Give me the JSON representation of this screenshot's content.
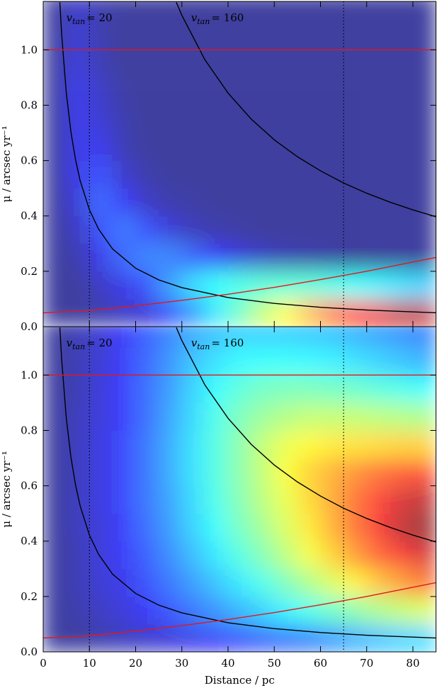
{
  "chart_data": [
    {
      "type": "heatmap",
      "colormap": "jet",
      "xlim": [
        0,
        85
      ],
      "xticks": [
        0,
        10,
        20,
        30,
        40,
        50,
        60,
        70,
        80
      ],
      "ylim": [
        0,
        1.175
      ],
      "yticks": [
        {
          "value": 0,
          "label": "0.0"
        },
        0.2,
        0.4,
        0.6,
        0.8,
        {
          "value": 1,
          "label": "1.0"
        }
      ],
      "ylabel": "μ / arcsec yr⁻¹",
      "x": [
        2.5,
        7.5,
        12.5,
        17.5,
        22.5,
        27.5,
        32.5,
        37.5,
        42.5,
        47.5,
        52.5,
        57.5,
        62.5,
        67.5,
        72.5,
        77.5,
        82.5
      ],
      "y": [
        0.05,
        0.15,
        0.25,
        0.35,
        0.45,
        0.55,
        0.65,
        0.75,
        0.85,
        0.95,
        1.05,
        1.15
      ],
      "z": [
        [
          0,
          0,
          0.02,
          0.05,
          0.08,
          0.15,
          0.25,
          0.35,
          0.45,
          0.55,
          0.62,
          0.7,
          0.78,
          0.85,
          0.9,
          0.95,
          0.95
        ],
        [
          0,
          0,
          0.05,
          0.1,
          0.15,
          0.25,
          0.33,
          0.38,
          0.4,
          0.42,
          0.42,
          0.42,
          0.4,
          0.38,
          0.36,
          0.34,
          0.32
        ],
        [
          0,
          0.02,
          0.1,
          0.18,
          0.22,
          0.22,
          0.18,
          0.12,
          0.08,
          0.05,
          0.03,
          0.02,
          0.01,
          0,
          0,
          0,
          0
        ],
        [
          0,
          0.05,
          0.15,
          0.2,
          0.15,
          0.08,
          0.04,
          0.02,
          0.01,
          0,
          0,
          0,
          0,
          0,
          0,
          0,
          0
        ],
        [
          0,
          0.08,
          0.18,
          0.12,
          0.05,
          0.02,
          0.01,
          0,
          0,
          0,
          0,
          0,
          0,
          0,
          0,
          0,
          0
        ],
        [
          0,
          0.1,
          0.15,
          0.06,
          0.02,
          0,
          0,
          0,
          0,
          0,
          0,
          0,
          0,
          0,
          0,
          0,
          0
        ],
        [
          0,
          0.1,
          0.1,
          0.03,
          0,
          0,
          0,
          0,
          0,
          0,
          0,
          0,
          0,
          0,
          0,
          0,
          0
        ],
        [
          0,
          0.1,
          0.07,
          0.02,
          0,
          0,
          0,
          0,
          0,
          0,
          0,
          0,
          0,
          0,
          0,
          0,
          0
        ],
        [
          0,
          0.1,
          0.05,
          0.01,
          0,
          0,
          0,
          0,
          0,
          0,
          0,
          0,
          0,
          0,
          0,
          0,
          0
        ],
        [
          0,
          0.08,
          0.03,
          0,
          0,
          0,
          0,
          0,
          0,
          0,
          0,
          0,
          0,
          0,
          0,
          0,
          0
        ],
        [
          0,
          0.07,
          0.02,
          0,
          0,
          0,
          0,
          0,
          0,
          0,
          0,
          0,
          0,
          0,
          0,
          0,
          0
        ],
        [
          0,
          0.06,
          0.02,
          0,
          0,
          0,
          0,
          0,
          0,
          0,
          0,
          0,
          0,
          0,
          0,
          0,
          0
        ]
      ],
      "lines": [
        {
          "color": "#000000",
          "x": [
            3.6,
            4,
            5,
            6,
            7,
            8,
            10,
            12,
            15,
            20,
            25,
            30,
            40,
            50,
            60,
            70,
            85
          ],
          "values": [
            1.172,
            1.055,
            0.844,
            0.703,
            0.603,
            0.527,
            0.422,
            0.352,
            0.281,
            0.211,
            0.169,
            0.141,
            0.105,
            0.084,
            0.07,
            0.06,
            0.05
          ]
        },
        {
          "color": "#000000",
          "x": [
            28.8,
            30,
            35,
            40,
            45,
            50,
            55,
            60,
            65,
            70,
            75,
            80,
            85
          ],
          "values": [
            1.172,
            1.125,
            0.964,
            0.844,
            0.75,
            0.675,
            0.614,
            0.563,
            0.519,
            0.482,
            0.45,
            0.422,
            0.397
          ]
        },
        {
          "color": "#e0191e",
          "x": [
            0,
            85
          ],
          "values": [
            1,
            1
          ]
        },
        {
          "color": "#e0191e",
          "x": [
            0,
            10,
            20,
            30,
            40,
            50,
            60,
            70,
            85
          ],
          "values": [
            0.05,
            0.058,
            0.075,
            0.095,
            0.117,
            0.142,
            0.17,
            0.2,
            0.25
          ]
        }
      ],
      "vlines": [
        10,
        65
      ],
      "annotations": [
        {
          "symbol": "v",
          "subscript": "tan",
          "text": "= 20"
        },
        {
          "symbol": "v",
          "subscript": "tan",
          "text": "= 160"
        }
      ]
    },
    {
      "type": "heatmap",
      "colormap": "jet",
      "xlim": [
        0,
        85
      ],
      "xticks": [
        0,
        10,
        20,
        30,
        40,
        50,
        60,
        70,
        80
      ],
      "xlabel": "Distance / pc",
      "ylim": [
        0,
        1.175
      ],
      "yticks": [
        {
          "value": 0,
          "label": "0.0"
        },
        0.2,
        0.4,
        0.6,
        0.8,
        {
          "value": 1,
          "label": "1.0"
        }
      ],
      "ylabel": "μ / arcsec yr⁻¹",
      "x": [
        2.5,
        7.5,
        12.5,
        17.5,
        22.5,
        27.5,
        32.5,
        37.5,
        42.5,
        47.5,
        52.5,
        57.5,
        62.5,
        67.5,
        72.5,
        77.5,
        82.5
      ],
      "y": [
        0.05,
        0.15,
        0.25,
        0.35,
        0.45,
        0.55,
        0.65,
        0.75,
        0.85,
        0.95,
        1.05,
        1.15
      ],
      "z": [
        [
          0,
          0,
          0.02,
          0.04,
          0.06,
          0.08,
          0.1,
          0.12,
          0.15,
          0.18,
          0.2,
          0.22,
          0.25,
          0.28,
          0.3,
          0.32,
          0.33
        ],
        [
          0,
          0.02,
          0.05,
          0.08,
          0.12,
          0.16,
          0.2,
          0.24,
          0.28,
          0.32,
          0.36,
          0.4,
          0.44,
          0.48,
          0.52,
          0.55,
          0.58
        ],
        [
          0,
          0.03,
          0.07,
          0.1,
          0.15,
          0.2,
          0.25,
          0.3,
          0.35,
          0.4,
          0.46,
          0.52,
          0.58,
          0.64,
          0.7,
          0.75,
          0.8
        ],
        [
          0,
          0.03,
          0.08,
          0.12,
          0.17,
          0.23,
          0.29,
          0.35,
          0.41,
          0.47,
          0.54,
          0.61,
          0.68,
          0.75,
          0.82,
          0.88,
          0.92
        ],
        [
          0,
          0.04,
          0.08,
          0.13,
          0.19,
          0.25,
          0.32,
          0.38,
          0.45,
          0.51,
          0.58,
          0.65,
          0.72,
          0.8,
          0.88,
          0.95,
          1
        ],
        [
          0,
          0.04,
          0.09,
          0.14,
          0.2,
          0.26,
          0.33,
          0.4,
          0.47,
          0.54,
          0.6,
          0.67,
          0.73,
          0.8,
          0.86,
          0.92,
          0.95
        ],
        [
          0,
          0.04,
          0.09,
          0.14,
          0.2,
          0.27,
          0.34,
          0.41,
          0.48,
          0.55,
          0.62,
          0.68,
          0.72,
          0.76,
          0.8,
          0.83,
          0.85
        ],
        [
          0,
          0.04,
          0.09,
          0.14,
          0.2,
          0.27,
          0.34,
          0.41,
          0.48,
          0.55,
          0.6,
          0.63,
          0.65,
          0.66,
          0.67,
          0.68,
          0.68
        ],
        [
          0,
          0.04,
          0.08,
          0.13,
          0.19,
          0.26,
          0.33,
          0.4,
          0.46,
          0.5,
          0.53,
          0.55,
          0.55,
          0.55,
          0.54,
          0.53,
          0.52
        ],
        [
          0,
          0.03,
          0.08,
          0.13,
          0.19,
          0.25,
          0.32,
          0.38,
          0.42,
          0.45,
          0.46,
          0.46,
          0.45,
          0.44,
          0.42,
          0.4,
          0.38
        ],
        [
          0,
          0.03,
          0.07,
          0.12,
          0.18,
          0.24,
          0.3,
          0.34,
          0.37,
          0.38,
          0.38,
          0.37,
          0.36,
          0.34,
          0.32,
          0.3,
          0.28
        ],
        [
          0,
          0.03,
          0.07,
          0.12,
          0.17,
          0.22,
          0.27,
          0.3,
          0.32,
          0.32,
          0.32,
          0.31,
          0.3,
          0.28,
          0.26,
          0.24,
          0.22
        ]
      ],
      "lines": [
        {
          "color": "#000000",
          "x": [
            3.6,
            4,
            5,
            6,
            7,
            8,
            10,
            12,
            15,
            20,
            25,
            30,
            40,
            50,
            60,
            70,
            85
          ],
          "values": [
            1.172,
            1.055,
            0.844,
            0.703,
            0.603,
            0.527,
            0.422,
            0.352,
            0.281,
            0.211,
            0.169,
            0.141,
            0.105,
            0.084,
            0.07,
            0.06,
            0.05
          ]
        },
        {
          "color": "#000000",
          "x": [
            28.8,
            30,
            35,
            40,
            45,
            50,
            55,
            60,
            65,
            70,
            75,
            80,
            85
          ],
          "values": [
            1.172,
            1.125,
            0.964,
            0.844,
            0.75,
            0.675,
            0.614,
            0.563,
            0.519,
            0.482,
            0.45,
            0.422,
            0.397
          ]
        },
        {
          "color": "#e0191e",
          "x": [
            0,
            85
          ],
          "values": [
            1,
            1
          ]
        },
        {
          "color": "#e0191e",
          "x": [
            0,
            10,
            20,
            30,
            40,
            50,
            60,
            70,
            85
          ],
          "values": [
            0.05,
            0.058,
            0.075,
            0.095,
            0.117,
            0.142,
            0.17,
            0.2,
            0.25
          ]
        }
      ],
      "vlines": [
        10,
        65
      ],
      "annotations": [
        {
          "symbol": "v",
          "subscript": "tan",
          "text": "= 20"
        },
        {
          "symbol": "v",
          "subscript": "tan",
          "text": "= 160"
        }
      ]
    }
  ]
}
